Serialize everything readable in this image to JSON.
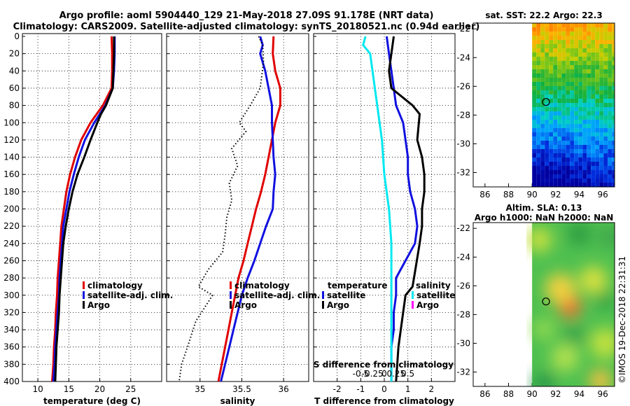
{
  "title_line1": "Argo profile: aoml 5904440_129 21-May-2018 27.09S 91.178E (NRT data)",
  "title_line2": "Climatology: CARS2009. Satellite-adjusted climatology: synTS_20180521.nc (0.94d earlier)",
  "watermark": "©IMOS 19-Dec-2018 22:31:31",
  "colors": {
    "climatology": "#e00000",
    "satellite": "#1010e0",
    "argo": "#000000",
    "sat_salinity": "#00e8f0",
    "argo_salinity": "#ff00ff"
  },
  "chart_data": [
    {
      "id": "temperature-panel",
      "type": "line",
      "xlabel": "temperature (deg C)",
      "ylabel": "",
      "xlim": [
        7.5,
        30
      ],
      "ylim": [
        400,
        0
      ],
      "xticks": [
        10,
        15,
        20,
        25
      ],
      "yticks": [
        0,
        20,
        40,
        60,
        80,
        100,
        120,
        140,
        160,
        180,
        200,
        220,
        240,
        260,
        280,
        300,
        320,
        340,
        360,
        380,
        400
      ],
      "legend": [
        "climatology",
        "satellite-adj. clim.",
        "Argo"
      ],
      "series": [
        {
          "name": "climatology",
          "color": "#e00000",
          "points": [
            [
              21.9,
              0
            ],
            [
              22.0,
              20
            ],
            [
              22.0,
              40
            ],
            [
              21.9,
              60
            ],
            [
              20.5,
              80
            ],
            [
              18.5,
              100
            ],
            [
              17.0,
              120
            ],
            [
              16.0,
              140
            ],
            [
              15.2,
              160
            ],
            [
              14.6,
              180
            ],
            [
              14.2,
              200
            ],
            [
              13.8,
              220
            ],
            [
              13.6,
              240
            ],
            [
              13.4,
              260
            ],
            [
              13.2,
              280
            ],
            [
              13.1,
              300
            ],
            [
              12.9,
              320
            ],
            [
              12.8,
              340
            ],
            [
              12.6,
              360
            ],
            [
              12.5,
              380
            ],
            [
              12.3,
              400
            ]
          ]
        },
        {
          "name": "satellite-adj. clim.",
          "color": "#1010e0",
          "points": [
            [
              22.4,
              0
            ],
            [
              22.4,
              20
            ],
            [
              22.3,
              40
            ],
            [
              22.1,
              60
            ],
            [
              20.9,
              80
            ],
            [
              19.1,
              100
            ],
            [
              17.6,
              120
            ],
            [
              16.6,
              140
            ],
            [
              15.8,
              160
            ],
            [
              15.1,
              180
            ],
            [
              14.6,
              200
            ],
            [
              14.1,
              220
            ],
            [
              13.9,
              240
            ],
            [
              13.7,
              260
            ],
            [
              13.5,
              280
            ],
            [
              13.4,
              300
            ],
            [
              13.2,
              320
            ],
            [
              13.0,
              340
            ],
            [
              12.8,
              360
            ],
            [
              12.7,
              380
            ],
            [
              12.5,
              400
            ]
          ]
        },
        {
          "name": "Argo",
          "color": "#000000",
          "points": [
            [
              22.3,
              0
            ],
            [
              22.3,
              20
            ],
            [
              22.2,
              40
            ],
            [
              22.1,
              60
            ],
            [
              21.0,
              80
            ],
            [
              20.2,
              90
            ],
            [
              19.6,
              100
            ],
            [
              18.5,
              120
            ],
            [
              17.5,
              140
            ],
            [
              16.4,
              160
            ],
            [
              15.6,
              180
            ],
            [
              15.0,
              200
            ],
            [
              14.5,
              220
            ],
            [
              14.1,
              240
            ],
            [
              13.9,
              260
            ],
            [
              13.7,
              280
            ],
            [
              13.5,
              300
            ],
            [
              13.4,
              320
            ],
            [
              13.2,
              340
            ],
            [
              13.0,
              360
            ],
            [
              12.9,
              380
            ],
            [
              12.8,
              400
            ]
          ]
        }
      ]
    },
    {
      "id": "salinity-panel",
      "type": "line",
      "xlabel": "salinity",
      "ylabel": "",
      "xlim": [
        34.6,
        36.3
      ],
      "ylim": [
        400,
        0
      ],
      "xticks": [
        35,
        35.5,
        36
      ],
      "legend": [
        "climatology",
        "satellite-adj. clim.",
        "Argo"
      ],
      "series": [
        {
          "name": "climatology",
          "color": "#e00000",
          "points": [
            [
              35.88,
              0
            ],
            [
              35.87,
              20
            ],
            [
              35.9,
              40
            ],
            [
              35.96,
              60
            ],
            [
              35.96,
              80
            ],
            [
              35.9,
              100
            ],
            [
              35.86,
              120
            ],
            [
              35.82,
              140
            ],
            [
              35.78,
              160
            ],
            [
              35.73,
              180
            ],
            [
              35.67,
              200
            ],
            [
              35.62,
              220
            ],
            [
              35.57,
              240
            ],
            [
              35.52,
              260
            ],
            [
              35.46,
              280
            ],
            [
              35.42,
              300
            ],
            [
              35.38,
              320
            ],
            [
              35.34,
              340
            ],
            [
              35.3,
              360
            ],
            [
              35.26,
              380
            ],
            [
              35.22,
              400
            ]
          ]
        },
        {
          "name": "satellite-adj. clim.",
          "color": "#1010e0",
          "points": [
            [
              35.72,
              0
            ],
            [
              35.75,
              10
            ],
            [
              35.72,
              20
            ],
            [
              35.78,
              40
            ],
            [
              35.82,
              60
            ],
            [
              35.86,
              80
            ],
            [
              35.86,
              100
            ],
            [
              35.87,
              120
            ],
            [
              35.88,
              140
            ],
            [
              35.9,
              160
            ],
            [
              35.88,
              180
            ],
            [
              35.87,
              200
            ],
            [
              35.79,
              220
            ],
            [
              35.72,
              240
            ],
            [
              35.65,
              260
            ],
            [
              35.57,
              280
            ],
            [
              35.5,
              300
            ],
            [
              35.45,
              320
            ],
            [
              35.4,
              340
            ],
            [
              35.35,
              360
            ],
            [
              35.3,
              380
            ],
            [
              35.25,
              400
            ]
          ]
        },
        {
          "name": "Argo",
          "color": "#000000",
          "points": [
            [
              35.7,
              0
            ],
            [
              35.75,
              10
            ],
            [
              35.76,
              30
            ],
            [
              35.72,
              60
            ],
            [
              35.6,
              80
            ],
            [
              35.47,
              100
            ],
            [
              35.55,
              110
            ],
            [
              35.38,
              130
            ],
            [
              35.45,
              150
            ],
            [
              35.35,
              170
            ],
            [
              35.38,
              190
            ],
            [
              35.32,
              210
            ],
            [
              35.3,
              230
            ],
            [
              35.27,
              250
            ],
            [
              35.1,
              270
            ],
            [
              34.98,
              290
            ],
            [
              35.15,
              300
            ],
            [
              34.95,
              330
            ],
            [
              34.85,
              360
            ],
            [
              34.78,
              380
            ],
            [
              34.75,
              400
            ]
          ]
        }
      ]
    },
    {
      "id": "difference-panel",
      "type": "line",
      "xlabel": "T difference from climatology",
      "xlabel_top": "S difference from climatology",
      "xlim": [
        -3,
        3
      ],
      "ylim": [
        400,
        0
      ],
      "xticks": [
        -2,
        -1,
        0,
        1,
        2
      ],
      "xticks_s": [
        "-0.5",
        "-0.25",
        "0",
        "0.25",
        "0.5"
      ],
      "legend_temperature_title": "temperature",
      "legend_salinity_title": "salinity",
      "legend": [
        "satellite",
        "Argo"
      ],
      "series": [
        {
          "name": "temperature satellite",
          "color": "#1010e0",
          "points": [
            [
              0.1,
              0
            ],
            [
              0.2,
              20
            ],
            [
              0.3,
              40
            ],
            [
              0.4,
              60
            ],
            [
              0.5,
              80
            ],
            [
              0.8,
              100
            ],
            [
              0.9,
              120
            ],
            [
              1.0,
              140
            ],
            [
              1.0,
              160
            ],
            [
              1.1,
              180
            ],
            [
              1.3,
              200
            ],
            [
              1.4,
              220
            ],
            [
              1.3,
              240
            ],
            [
              0.9,
              260
            ],
            [
              0.5,
              280
            ],
            [
              0.5,
              300
            ],
            [
              0.4,
              320
            ],
            [
              0.4,
              340
            ],
            [
              0.3,
              360
            ],
            [
              0.3,
              380
            ],
            [
              0.3,
              400
            ]
          ]
        },
        {
          "name": "temperature Argo",
          "color": "#000000",
          "points": [
            [
              0.4,
              0
            ],
            [
              0.3,
              20
            ],
            [
              0.2,
              40
            ],
            [
              0.3,
              60
            ],
            [
              1.2,
              80
            ],
            [
              1.5,
              90
            ],
            [
              1.4,
              120
            ],
            [
              1.6,
              140
            ],
            [
              1.7,
              160
            ],
            [
              1.7,
              180
            ],
            [
              1.6,
              200
            ],
            [
              1.6,
              220
            ],
            [
              1.5,
              240
            ],
            [
              1.2,
              290
            ],
            [
              0.9,
              300
            ],
            [
              0.8,
              320
            ],
            [
              0.6,
              360
            ],
            [
              0.5,
              400
            ]
          ]
        },
        {
          "name": "salinity satellite",
          "color": "#00e8f0",
          "points": [
            [
              -0.8,
              0
            ],
            [
              -0.9,
              10
            ],
            [
              -0.6,
              20
            ],
            [
              -0.4,
              60
            ],
            [
              -0.3,
              80
            ],
            [
              -0.1,
              120
            ],
            [
              0.0,
              160
            ],
            [
              0.2,
              200
            ],
            [
              0.3,
              240
            ],
            [
              0.3,
              280
            ],
            [
              0.3,
              320
            ],
            [
              0.3,
              360
            ],
            [
              0.3,
              400
            ]
          ]
        }
      ]
    },
    {
      "id": "sst-map",
      "type": "heatmap",
      "title": "sat. SST: 22.2 Argo: 22.3",
      "xticks": [
        86,
        88,
        90,
        92,
        94,
        96
      ],
      "yticks": [
        -22,
        -24,
        -26,
        -28,
        -30,
        -32
      ],
      "xlim": [
        85,
        97
      ],
      "ylim": [
        -33,
        -21.6
      ],
      "marker": [
        91.178,
        -27.09
      ]
    },
    {
      "id": "sla-map",
      "type": "heatmap",
      "title_line1": "Altim. SLA: 0.13",
      "title_line2": "Argo h1000: NaN h2000: NaN",
      "xticks": [
        86,
        88,
        90,
        92,
        94,
        96
      ],
      "yticks": [
        -22,
        -24,
        -26,
        -28,
        -30,
        -32
      ],
      "xlim": [
        85,
        97
      ],
      "ylim": [
        -33,
        -21.6
      ],
      "marker": [
        91.178,
        -27.09
      ]
    }
  ]
}
